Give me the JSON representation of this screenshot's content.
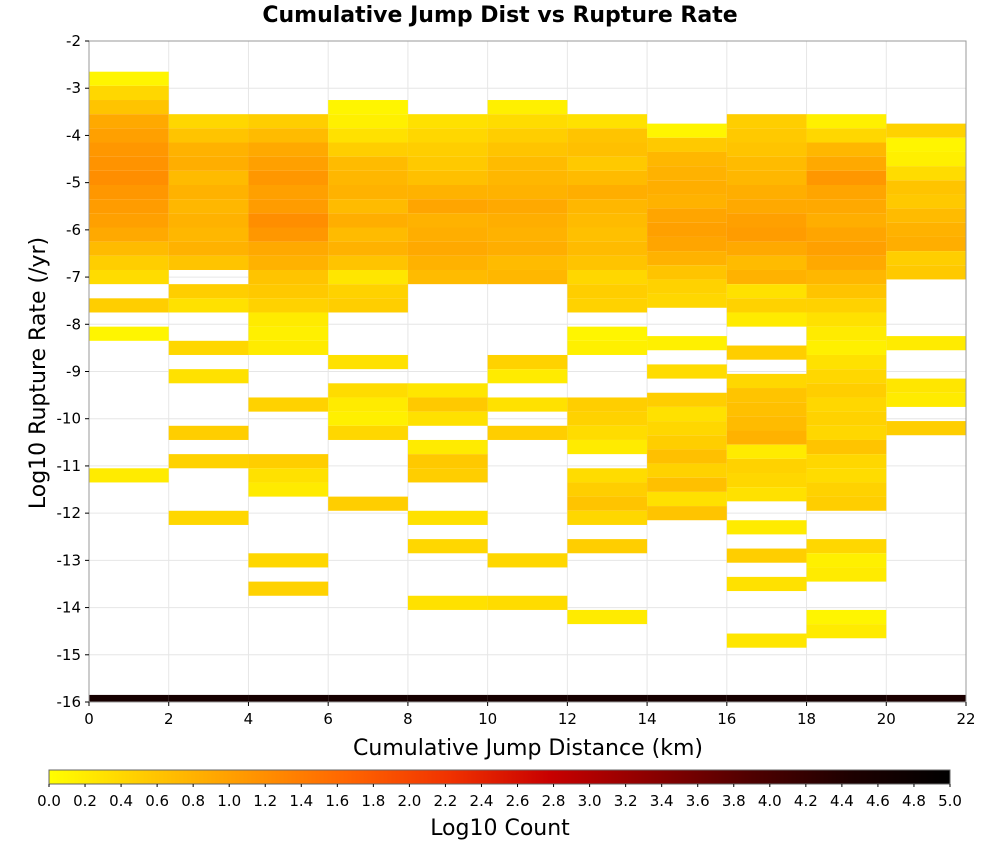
{
  "chart_data": {
    "type": "heatmap",
    "title": "Cumulative Jump Dist vs Rupture Rate",
    "xlabel": "Cumulative Jump Distance (km)",
    "ylabel": "Log10 Rupture Rate (/yr)",
    "xlim": [
      0,
      22
    ],
    "ylim": [
      -16,
      -2
    ],
    "x_ticks": [
      "0",
      "2",
      "4",
      "6",
      "8",
      "10",
      "12",
      "14",
      "16",
      "18",
      "20",
      "22"
    ],
    "y_ticks": [
      "-2",
      "-3",
      "-4",
      "-5",
      "-6",
      "-7",
      "-8",
      "-9",
      "-10",
      "-11",
      "-12",
      "-13",
      "-14",
      "-15",
      "-16"
    ],
    "grid": true,
    "x_bin_width_km": 2,
    "y_bin_height_log10": 0.3,
    "colorbar": {
      "label": "Log10 Count",
      "range": [
        0,
        5
      ],
      "ticks": [
        "0.0",
        "0.2",
        "0.4",
        "0.6",
        "0.8",
        "1.0",
        "1.2",
        "1.4",
        "1.6",
        "1.8",
        "2.0",
        "2.2",
        "2.4",
        "2.6",
        "2.8",
        "3.0",
        "3.2",
        "3.4",
        "3.6",
        "3.8",
        "4.0",
        "4.2",
        "4.4",
        "4.6",
        "4.8",
        "5.0"
      ],
      "colors": [
        "#ffff00",
        "#ffc800",
        "#ff9600",
        "#ff6400",
        "#f03200",
        "#c80000",
        "#8c0000",
        "#500000",
        "#1e0000",
        "#000000"
      ]
    },
    "columns": [
      {
        "x": 1,
        "cells": [
          [
            -2.8,
            0.1
          ],
          [
            -3.1,
            0.4
          ],
          [
            -3.4,
            0.6
          ],
          [
            -3.7,
            0.9
          ],
          [
            -4.0,
            1.0
          ],
          [
            -4.3,
            1.1
          ],
          [
            -4.6,
            1.15
          ],
          [
            -4.9,
            1.2
          ],
          [
            -5.2,
            1.1
          ],
          [
            -5.5,
            1.05
          ],
          [
            -5.8,
            1.0
          ],
          [
            -6.1,
            0.9
          ],
          [
            -6.4,
            0.7
          ],
          [
            -6.7,
            0.5
          ],
          [
            -7.0,
            0.35
          ],
          [
            -7.6,
            0.5
          ],
          [
            -8.2,
            0.1
          ],
          [
            -11.2,
            0.2
          ],
          [
            -16.0,
            4.6
          ]
        ]
      },
      {
        "x": 3,
        "cells": [
          [
            -3.7,
            0.4
          ],
          [
            -4.0,
            0.6
          ],
          [
            -4.3,
            0.8
          ],
          [
            -4.6,
            0.85
          ],
          [
            -4.9,
            0.7
          ],
          [
            -5.2,
            0.8
          ],
          [
            -5.5,
            0.75
          ],
          [
            -5.8,
            0.8
          ],
          [
            -6.1,
            0.75
          ],
          [
            -6.4,
            0.8
          ],
          [
            -6.7,
            0.6
          ],
          [
            -7.3,
            0.5
          ],
          [
            -7.6,
            0.3
          ],
          [
            -8.5,
            0.4
          ],
          [
            -9.1,
            0.3
          ],
          [
            -10.3,
            0.5
          ],
          [
            -10.9,
            0.45
          ],
          [
            -12.1,
            0.4
          ],
          [
            -16.0,
            4.6
          ]
        ]
      },
      {
        "x": 5,
        "cells": [
          [
            -3.7,
            0.5
          ],
          [
            -4.0,
            0.7
          ],
          [
            -4.3,
            0.9
          ],
          [
            -4.6,
            1.0
          ],
          [
            -4.9,
            1.1
          ],
          [
            -5.2,
            1.0
          ],
          [
            -5.5,
            1.05
          ],
          [
            -5.8,
            1.2
          ],
          [
            -6.1,
            1.1
          ],
          [
            -6.4,
            0.9
          ],
          [
            -6.7,
            0.8
          ],
          [
            -7.0,
            0.6
          ],
          [
            -7.3,
            0.55
          ],
          [
            -7.6,
            0.45
          ],
          [
            -7.9,
            0.2
          ],
          [
            -8.2,
            0.15
          ],
          [
            -8.5,
            0.2
          ],
          [
            -9.7,
            0.45
          ],
          [
            -10.9,
            0.5
          ],
          [
            -11.2,
            0.3
          ],
          [
            -11.5,
            0.2
          ],
          [
            -13.0,
            0.4
          ],
          [
            -13.6,
            0.45
          ],
          [
            -16.0,
            4.6
          ]
        ]
      },
      {
        "x": 7,
        "cells": [
          [
            -3.4,
            0.1
          ],
          [
            -3.7,
            0.15
          ],
          [
            -4.0,
            0.3
          ],
          [
            -4.3,
            0.5
          ],
          [
            -4.6,
            0.7
          ],
          [
            -4.9,
            0.75
          ],
          [
            -5.2,
            0.8
          ],
          [
            -5.5,
            0.7
          ],
          [
            -5.8,
            0.85
          ],
          [
            -6.1,
            0.7
          ],
          [
            -6.4,
            0.8
          ],
          [
            -6.7,
            0.6
          ],
          [
            -7.0,
            0.25
          ],
          [
            -7.3,
            0.45
          ],
          [
            -7.6,
            0.5
          ],
          [
            -8.8,
            0.3
          ],
          [
            -9.4,
            0.35
          ],
          [
            -9.7,
            0.2
          ],
          [
            -10.0,
            0.15
          ],
          [
            -10.3,
            0.4
          ],
          [
            -11.8,
            0.5
          ],
          [
            -16.0,
            4.6
          ]
        ]
      },
      {
        "x": 9,
        "cells": [
          [
            -3.7,
            0.3
          ],
          [
            -4.0,
            0.4
          ],
          [
            -4.3,
            0.5
          ],
          [
            -4.6,
            0.55
          ],
          [
            -4.9,
            0.65
          ],
          [
            -5.2,
            0.8
          ],
          [
            -5.5,
            0.95
          ],
          [
            -5.8,
            0.8
          ],
          [
            -6.1,
            0.85
          ],
          [
            -6.4,
            0.9
          ],
          [
            -6.7,
            0.8
          ],
          [
            -7.0,
            0.7
          ],
          [
            -9.4,
            0.25
          ],
          [
            -9.7,
            0.55
          ],
          [
            -10.0,
            0.3
          ],
          [
            -10.6,
            0.2
          ],
          [
            -10.9,
            0.55
          ],
          [
            -11.2,
            0.5
          ],
          [
            -12.1,
            0.3
          ],
          [
            -12.7,
            0.4
          ],
          [
            -13.9,
            0.3
          ],
          [
            -16.0,
            4.6
          ]
        ]
      },
      {
        "x": 11,
        "cells": [
          [
            -3.4,
            0.15
          ],
          [
            -3.7,
            0.35
          ],
          [
            -4.0,
            0.5
          ],
          [
            -4.3,
            0.6
          ],
          [
            -4.6,
            0.7
          ],
          [
            -4.9,
            0.75
          ],
          [
            -5.2,
            0.8
          ],
          [
            -5.5,
            0.9
          ],
          [
            -5.8,
            0.85
          ],
          [
            -6.1,
            0.8
          ],
          [
            -6.4,
            0.85
          ],
          [
            -6.7,
            0.7
          ],
          [
            -7.0,
            0.75
          ],
          [
            -8.8,
            0.45
          ],
          [
            -9.1,
            0.2
          ],
          [
            -9.7,
            0.3
          ],
          [
            -10.3,
            0.5
          ],
          [
            -13.0,
            0.4
          ],
          [
            -13.9,
            0.35
          ],
          [
            -16.0,
            4.6
          ]
        ]
      },
      {
        "x": 13,
        "cells": [
          [
            -3.7,
            0.3
          ],
          [
            -4.0,
            0.6
          ],
          [
            -4.3,
            0.65
          ],
          [
            -4.6,
            0.55
          ],
          [
            -4.9,
            0.7
          ],
          [
            -5.2,
            0.85
          ],
          [
            -5.5,
            0.75
          ],
          [
            -5.8,
            0.7
          ],
          [
            -6.1,
            0.65
          ],
          [
            -6.4,
            0.7
          ],
          [
            -6.7,
            0.6
          ],
          [
            -7.0,
            0.4
          ],
          [
            -7.3,
            0.5
          ],
          [
            -7.6,
            0.45
          ],
          [
            -8.2,
            0.1
          ],
          [
            -8.5,
            0.15
          ],
          [
            -9.7,
            0.5
          ],
          [
            -10.0,
            0.45
          ],
          [
            -10.3,
            0.35
          ],
          [
            -10.6,
            0.2
          ],
          [
            -11.2,
            0.35
          ],
          [
            -11.5,
            0.5
          ],
          [
            -11.8,
            0.6
          ],
          [
            -12.1,
            0.4
          ],
          [
            -12.7,
            0.5
          ],
          [
            -14.2,
            0.2
          ],
          [
            -16.0,
            4.6
          ]
        ]
      },
      {
        "x": 15,
        "cells": [
          [
            -3.9,
            0.1
          ],
          [
            -4.2,
            0.55
          ],
          [
            -4.5,
            0.75
          ],
          [
            -4.8,
            0.8
          ],
          [
            -5.1,
            0.85
          ],
          [
            -5.4,
            0.8
          ],
          [
            -5.7,
            0.95
          ],
          [
            -6.0,
            1.0
          ],
          [
            -6.3,
            0.95
          ],
          [
            -6.6,
            0.8
          ],
          [
            -6.9,
            0.6
          ],
          [
            -7.2,
            0.45
          ],
          [
            -7.5,
            0.4
          ],
          [
            -8.4,
            0.15
          ],
          [
            -9.0,
            0.35
          ],
          [
            -9.6,
            0.5
          ],
          [
            -9.9,
            0.3
          ],
          [
            -10.2,
            0.4
          ],
          [
            -10.5,
            0.5
          ],
          [
            -10.8,
            0.65
          ],
          [
            -11.1,
            0.45
          ],
          [
            -11.4,
            0.65
          ],
          [
            -11.7,
            0.3
          ],
          [
            -12.0,
            0.6
          ],
          [
            -16.0,
            4.6
          ]
        ]
      },
      {
        "x": 17,
        "cells": [
          [
            -3.7,
            0.5
          ],
          [
            -4.0,
            0.55
          ],
          [
            -4.3,
            0.6
          ],
          [
            -4.6,
            0.7
          ],
          [
            -4.9,
            0.75
          ],
          [
            -5.2,
            0.85
          ],
          [
            -5.5,
            0.9
          ],
          [
            -5.8,
            1.0
          ],
          [
            -6.1,
            1.05
          ],
          [
            -6.4,
            0.9
          ],
          [
            -6.7,
            0.7
          ],
          [
            -7.0,
            0.8
          ],
          [
            -7.3,
            0.3
          ],
          [
            -7.6,
            0.45
          ],
          [
            -7.9,
            0.2
          ],
          [
            -8.6,
            0.5
          ],
          [
            -9.2,
            0.4
          ],
          [
            -9.5,
            0.6
          ],
          [
            -9.8,
            0.65
          ],
          [
            -10.1,
            0.7
          ],
          [
            -10.4,
            0.8
          ],
          [
            -10.7,
            0.2
          ],
          [
            -11.0,
            0.45
          ],
          [
            -11.3,
            0.4
          ],
          [
            -11.6,
            0.3
          ],
          [
            -12.3,
            0.2
          ],
          [
            -12.9,
            0.5
          ],
          [
            -13.5,
            0.3
          ],
          [
            -14.7,
            0.25
          ],
          [
            -16.0,
            4.6
          ]
        ]
      },
      {
        "x": 19,
        "cells": [
          [
            -3.7,
            0.15
          ],
          [
            -4.0,
            0.4
          ],
          [
            -4.3,
            0.75
          ],
          [
            -4.6,
            0.9
          ],
          [
            -4.9,
            1.1
          ],
          [
            -5.2,
            0.95
          ],
          [
            -5.5,
            0.9
          ],
          [
            -5.8,
            0.85
          ],
          [
            -6.1,
            0.95
          ],
          [
            -6.4,
            1.0
          ],
          [
            -6.7,
            0.9
          ],
          [
            -7.0,
            0.75
          ],
          [
            -7.3,
            0.6
          ],
          [
            -7.6,
            0.45
          ],
          [
            -7.9,
            0.3
          ],
          [
            -8.2,
            0.2
          ],
          [
            -8.5,
            0.15
          ],
          [
            -8.8,
            0.3
          ],
          [
            -9.1,
            0.4
          ],
          [
            -9.4,
            0.5
          ],
          [
            -9.7,
            0.4
          ],
          [
            -10.0,
            0.45
          ],
          [
            -10.3,
            0.4
          ],
          [
            -10.6,
            0.6
          ],
          [
            -10.9,
            0.4
          ],
          [
            -11.2,
            0.35
          ],
          [
            -11.5,
            0.45
          ],
          [
            -11.8,
            0.5
          ],
          [
            -12.7,
            0.4
          ],
          [
            -13.0,
            0.15
          ],
          [
            -13.3,
            0.2
          ],
          [
            -14.2,
            0.1
          ],
          [
            -14.5,
            0.2
          ],
          [
            -16.0,
            4.6
          ]
        ]
      },
      {
        "x": 21,
        "cells": [
          [
            -3.9,
            0.45
          ],
          [
            -4.2,
            0.1
          ],
          [
            -4.5,
            0.15
          ],
          [
            -4.8,
            0.35
          ],
          [
            -5.1,
            0.6
          ],
          [
            -5.4,
            0.55
          ],
          [
            -5.7,
            0.7
          ],
          [
            -6.0,
            0.8
          ],
          [
            -6.3,
            0.85
          ],
          [
            -6.6,
            0.5
          ],
          [
            -6.9,
            0.55
          ],
          [
            -8.4,
            0.2
          ],
          [
            -9.3,
            0.25
          ],
          [
            -9.6,
            0.2
          ],
          [
            -10.2,
            0.5
          ],
          [
            -16.0,
            4.5
          ]
        ]
      }
    ]
  }
}
